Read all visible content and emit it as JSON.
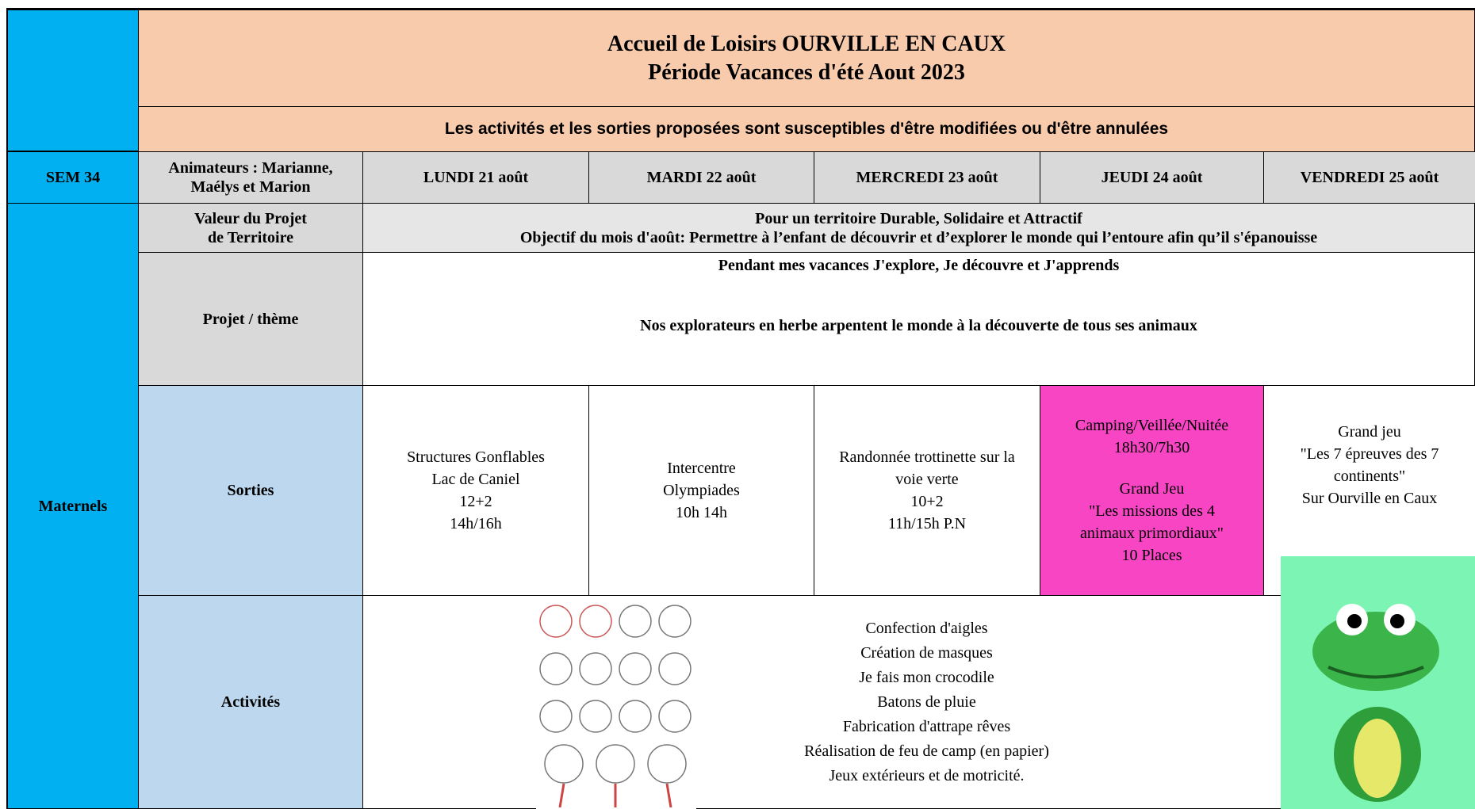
{
  "header": {
    "title": [
      "Accueil de Loisirs OURVILLE EN CAUX",
      "Période Vacances d'été Aout 2023"
    ],
    "notice": "Les activités et les sorties proposées sont susceptibles d'être modifiées ou d'être annulées"
  },
  "table": {
    "week": "SEM 34",
    "staff": [
      "Animateurs : Marianne,",
      "Maélys et Marion"
    ],
    "days": [
      "LUNDI 21 août",
      "MARDI 22 août",
      "MERCREDI 23 août",
      "JEUDI 24 août",
      "VENDREDI 25 août"
    ],
    "group": "Maternels",
    "valeur": {
      "label": [
        "Valeur du Projet",
        "de Territoire"
      ],
      "content": [
        "Pour un territoire Durable, Solidaire et Attractif",
        "Objectif du mois d'août: Permettre à l’enfant de découvrir et d’explorer le monde qui l’entoure afin qu’il s'épanouisse"
      ]
    },
    "projet": {
      "label": "Projet / thème",
      "intro": "Pendant mes vacances J'explore, Je découvre et J'apprends",
      "theme": "Nos explorateurs en herbe arpentent le monde à la découverte de tous ses animaux"
    },
    "sorties": {
      "label": "Sorties",
      "cells": [
        [
          [
            "Structures Gonflables",
            "Lac de Caniel",
            "12+2",
            "14h/16h"
          ]
        ],
        [
          [
            "Intercentre",
            "Olympiades",
            "10h 14h"
          ]
        ],
        [
          [
            "Randonnée trottinette sur la",
            "voie verte",
            "10+2",
            "11h/15h P.N"
          ]
        ],
        [
          [
            "Camping/Veillée/Nuitée",
            "18h30/7h30"
          ],
          [
            "Grand Jeu",
            "\"Les missions des 4",
            "animaux primordiaux\"",
            "10 Places"
          ]
        ],
        [
          [
            "Grand jeu",
            "\"Les 7 épreuves des 7",
            "continents\"",
            "Sur Ourville en Caux"
          ]
        ]
      ]
    },
    "activites": {
      "label": "Activités",
      "items": [
        "Confection d'aigles",
        "Création de masques",
        "Je fais mon crocodile",
        "Batons de pluie",
        "Fabrication d'attrape rêves",
        "Réalisation de feu de camp (en papier)",
        "Jeux extérieurs et de motricité."
      ]
    }
  }
}
